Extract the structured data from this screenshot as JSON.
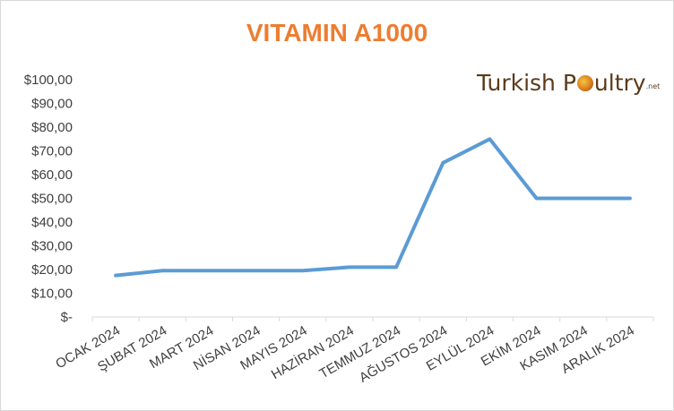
{
  "chart_data": {
    "type": "line",
    "title": "VITAMIN A1000",
    "categories": [
      "OCAK 2024",
      "ŞUBAT 2024",
      "MART 2024",
      "NİSAN 2024",
      "MAYIS 2024",
      "HAZİRAN 2024",
      "TEMMUZ 2024",
      "AĞUSTOS 2024",
      "EYLÜL 2024",
      "EKİM 2024",
      "KASIM 2024",
      "ARALIK 2024"
    ],
    "series": [
      {
        "values": [
          17.5,
          19.5,
          19.5,
          19.5,
          19.5,
          21,
          21,
          65,
          75,
          50,
          50,
          50
        ]
      }
    ],
    "ylim": [
      0,
      100
    ],
    "y_ticks": [
      "$-",
      "$10,00",
      "$20,00",
      "$30,00",
      "$40,00",
      "$50,00",
      "$60,00",
      "$70,00",
      "$80,00",
      "$90,00",
      "$100,00"
    ],
    "grid": false,
    "legend": "none",
    "colors": {
      "line": "#5b9bd5",
      "title": "#ed7d31",
      "axis": "#d9d9d9",
      "text": "#404040"
    }
  },
  "logo": {
    "text_before": "Turkish P",
    "text_after": "ultry",
    "tld": ".net"
  }
}
